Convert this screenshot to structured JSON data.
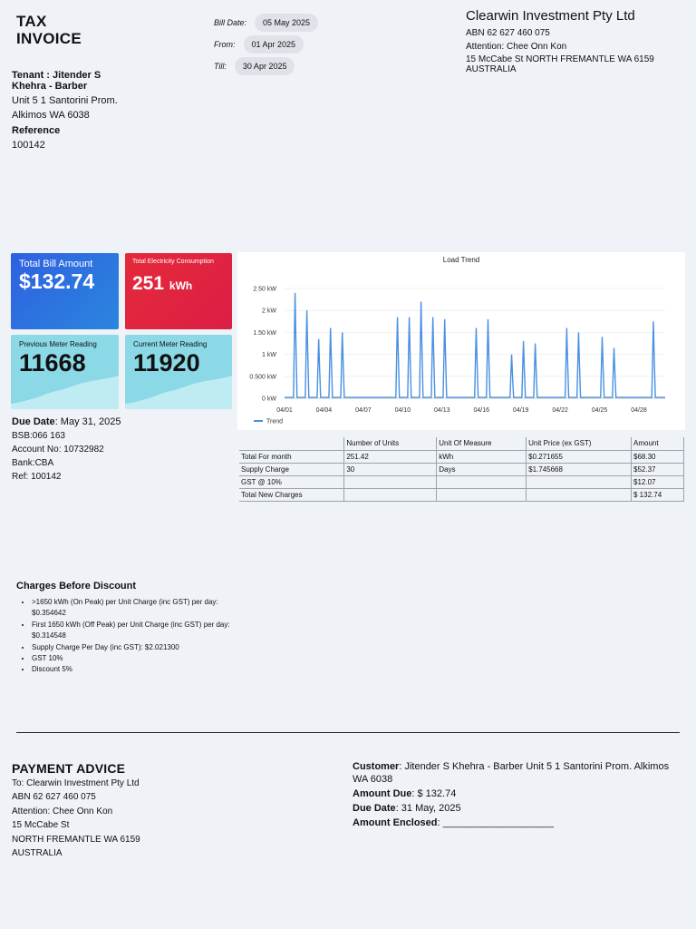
{
  "header": {
    "title_line1": "TAX",
    "title_line2": "INVOICE",
    "bill_date_label": "Bill Date:",
    "bill_date": "05 May 2025",
    "from_label": "From:",
    "from_date": "01 Apr 2025",
    "till_label": "Till:",
    "till_date": "30 Apr 2025"
  },
  "company": {
    "name": "Clearwin Investment Pty Ltd",
    "abn": "ABN 62 627 460 075",
    "attention": "Attention: Chee Onn Kon",
    "address_line1": "15 McCabe St NORTH FREMANTLE WA 6159",
    "address_line2": "AUSTRALIA"
  },
  "tenant": {
    "name_line1": "Tenant : Jitender S",
    "name_line2": "Khehra - Barber",
    "address_line1": "Unit 5 1 Santorini Prom.",
    "address_line2": "Alkimos WA 6038",
    "reference_label": "Reference",
    "reference": "100142"
  },
  "cards": {
    "total_bill_label": "Total Bill Amount",
    "total_bill_value": "$132.74",
    "electricity_label": "Total Electricity Consumption",
    "electricity_value": "251",
    "electricity_unit": "kWh",
    "previous_label": "Previous Meter Reading",
    "previous_value": "11668",
    "current_label": "Current Meter Reading",
    "current_value": "11920"
  },
  "payment_info": {
    "due_label": "Due Date",
    "due_value": ": May 31, 2025",
    "bsb": "BSB:066 163",
    "account": "Account No: 10732982",
    "bank": "Bank:CBA",
    "ref": "Ref: 100142"
  },
  "chart_data": {
    "type": "line",
    "title": "Load Trend",
    "ylabel": "",
    "xlabel": "",
    "ylim": [
      0,
      2.5
    ],
    "y_ticks": [
      "0 kW",
      "0.500 kW",
      "1 kW",
      "1.50 kW",
      "2 kW",
      "2.50 kW"
    ],
    "x_ticks": [
      "04/01",
      "04/04",
      "04/07",
      "04/10",
      "04/13",
      "04/16",
      "04/19",
      "04/22",
      "04/25",
      "04/28"
    ],
    "legend": "bottom-left",
    "series": [
      {
        "name": "Trend",
        "color": "#4a90e2",
        "peaks": [
          {
            "day": 1.8,
            "value": 2.4
          },
          {
            "day": 2.7,
            "value": 2.0
          },
          {
            "day": 3.6,
            "value": 1.35
          },
          {
            "day": 4.5,
            "value": 1.6
          },
          {
            "day": 5.4,
            "value": 1.5
          },
          {
            "day": 9.6,
            "value": 1.85
          },
          {
            "day": 10.5,
            "value": 1.85
          },
          {
            "day": 11.4,
            "value": 2.2
          },
          {
            "day": 12.3,
            "value": 1.85
          },
          {
            "day": 13.2,
            "value": 1.8
          },
          {
            "day": 15.6,
            "value": 1.6
          },
          {
            "day": 16.5,
            "value": 1.8
          },
          {
            "day": 18.3,
            "value": 1.0
          },
          {
            "day": 19.2,
            "value": 1.3
          },
          {
            "day": 20.1,
            "value": 1.25
          },
          {
            "day": 22.5,
            "value": 1.6
          },
          {
            "day": 23.4,
            "value": 1.5
          },
          {
            "day": 25.2,
            "value": 1.4
          },
          {
            "day": 26.1,
            "value": 1.15
          },
          {
            "day": 29.1,
            "value": 1.75
          }
        ]
      }
    ]
  },
  "table": {
    "headers": [
      "",
      "Number of Units",
      "Unit Of Measure",
      "Unit Price (ex GST)",
      "Amount"
    ],
    "rows": [
      [
        "Total For month",
        "251.42",
        "kWh",
        "$0.271655",
        "$68.30"
      ],
      [
        "Supply Charge",
        "30",
        "Days",
        "$1.745668",
        "$52.37"
      ],
      [
        "GST @ 10%",
        "",
        "",
        "",
        "$12.07"
      ],
      [
        "Total New Charges",
        "",
        "",
        "",
        "$ 132.74"
      ]
    ]
  },
  "charges": {
    "heading": "Charges Before Discount",
    "items": [
      ">1650 kWh (On Peak) per Unit Charge (inc GST) per day: $0.354642",
      "First 1650 kWh (Off Peak) per Unit Charge (inc GST) per day: $0.314548",
      "Supply Charge Per Day (inc GST): $2.021300",
      "GST 10%",
      "Discount 5%"
    ]
  },
  "payment_advice": {
    "heading": "PAYMENT ADVICE",
    "to": "To: Clearwin Investment Pty Ltd",
    "abn": "ABN 62 627 460 075",
    "attention": "Attention: Chee Onn Kon",
    "street": "15 McCabe St",
    "city": "NORTH FREMANTLE WA 6159",
    "country": "AUSTRALIA"
  },
  "customer": {
    "customer_label": "Customer",
    "customer_value": ": Jitender S Khehra - Barber Unit 5 1 Santorini Prom. Alkimos WA 6038",
    "amount_due_label": "Amount Due",
    "amount_due_value": ": $ 132.74",
    "due_date_label": "Due Date",
    "due_date_value": ": 31 May, 2025",
    "enclosed_label": "Amount Enclosed",
    "enclosed_value": ": ____________________"
  }
}
